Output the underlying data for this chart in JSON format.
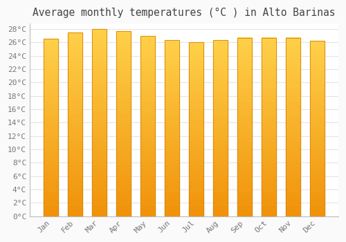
{
  "title": "Average monthly temperatures (°C ) in Alto Barinas",
  "months": [
    "Jan",
    "Feb",
    "Mar",
    "Apr",
    "May",
    "Jun",
    "Jul",
    "Aug",
    "Sep",
    "Oct",
    "Nov",
    "Dec"
  ],
  "values": [
    26.5,
    27.5,
    28.0,
    27.7,
    27.0,
    26.3,
    26.0,
    26.3,
    26.7,
    26.7,
    26.7,
    26.2
  ],
  "bar_color_top": "#FFD04A",
  "bar_color_bottom": "#F0920A",
  "bar_edge_color": "#D4850A",
  "background_color": "#FAFAFA",
  "plot_bg_color": "#FFFFFF",
  "grid_color": "#DDDDDD",
  "title_color": "#444444",
  "tick_color": "#777777",
  "ylim_max": 28,
  "ylim_min": 0,
  "ytick_step": 2,
  "title_fontsize": 10.5,
  "tick_fontsize": 8,
  "bar_width": 0.6
}
